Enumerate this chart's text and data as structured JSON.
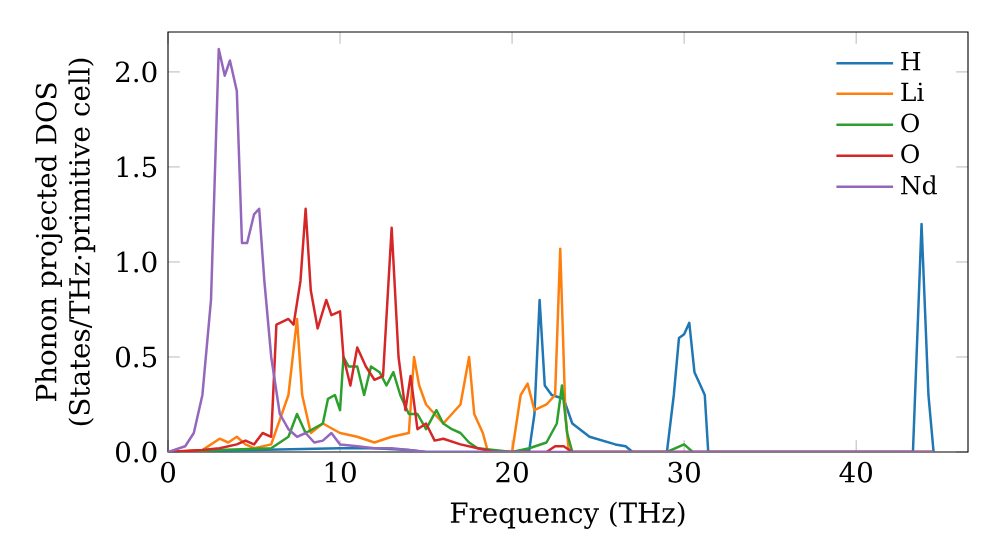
{
  "chart_data": {
    "type": "line",
    "xlabel": "Frequency (THz)",
    "ylabel": "Phonon projected DOS (States/THz·primitive cell)",
    "xlim": [
      0,
      46.5
    ],
    "ylim": [
      0,
      2.21
    ],
    "xticks": [
      0,
      10,
      20,
      30,
      40
    ],
    "yticks": [
      {
        "value": 0,
        "label": "0.0"
      },
      {
        "value": 0.5,
        "label": "0.5"
      },
      {
        "value": 1,
        "label": "1.0"
      },
      {
        "value": 1.5,
        "label": "1.5"
      },
      {
        "value": 2,
        "label": "2.0"
      }
    ],
    "legend": "top right",
    "grid": false,
    "series": [
      {
        "name": "H",
        "color": "#1f77b4",
        "x": [
          0,
          10,
          12,
          14,
          15,
          20,
          21,
          21.3,
          21.6,
          21.9,
          22.3,
          23,
          23.5,
          24.5,
          26,
          26.6,
          27,
          29,
          29.4,
          29.7,
          30,
          30.3,
          30.6,
          30.9,
          31.2,
          31.4,
          43.3,
          43.8,
          44.2,
          44.5
        ],
        "values": [
          0,
          0.02,
          0.02,
          0.01,
          0,
          0,
          0.01,
          0.2,
          0.8,
          0.35,
          0.3,
          0.28,
          0.15,
          0.08,
          0.04,
          0.03,
          0,
          0,
          0.3,
          0.6,
          0.62,
          0.68,
          0.42,
          0.36,
          0.3,
          0,
          0,
          1.2,
          0.3,
          0
        ]
      },
      {
        "name": "Li",
        "color": "#ff7f0e",
        "x": [
          0,
          2,
          3,
          3.5,
          4,
          4.5,
          5,
          6,
          7,
          7.5,
          7.8,
          8.3,
          9,
          10,
          11,
          12,
          13,
          14,
          14.3,
          14.6,
          15,
          16,
          17,
          17.5,
          17.8,
          18.3,
          18.6,
          20,
          20.5,
          20.9,
          21.3,
          22,
          22.5,
          22.8,
          23.1,
          23.3,
          44.5
        ],
        "values": [
          0,
          0.01,
          0.07,
          0.05,
          0.08,
          0.04,
          0.02,
          0.04,
          0.3,
          0.7,
          0.3,
          0.1,
          0.15,
          0.1,
          0.08,
          0.05,
          0.08,
          0.1,
          0.5,
          0.35,
          0.25,
          0.15,
          0.25,
          0.5,
          0.2,
          0.1,
          0,
          0,
          0.3,
          0.36,
          0.22,
          0.25,
          0.3,
          1.07,
          0.2,
          0,
          0
        ]
      },
      {
        "name": "O",
        "color": "#2ca02c",
        "x": [
          0,
          3,
          6,
          7,
          7.5,
          8,
          9,
          9.3,
          9.7,
          10,
          10.2,
          10.5,
          11,
          11.4,
          11.8,
          12.3,
          12.7,
          13.1,
          13.5,
          14,
          14.5,
          15,
          15.6,
          16,
          16.5,
          17,
          17.5,
          18,
          20,
          21,
          22,
          22.6,
          22.9,
          23.2,
          23.5,
          29,
          30,
          30.5,
          44.5
        ],
        "values": [
          0,
          0.01,
          0.02,
          0.08,
          0.2,
          0.1,
          0.15,
          0.28,
          0.3,
          0.22,
          0.5,
          0.45,
          0.45,
          0.3,
          0.45,
          0.42,
          0.35,
          0.42,
          0.3,
          0.2,
          0.2,
          0.12,
          0.22,
          0.15,
          0.12,
          0.1,
          0.05,
          0.02,
          0,
          0.02,
          0.05,
          0.15,
          0.35,
          0.1,
          0,
          0,
          0.04,
          0,
          0
        ]
      },
      {
        "name": "O",
        "color": "#d62728",
        "x": [
          0,
          2,
          3,
          4,
          4.5,
          5,
          5.5,
          6,
          6.3,
          7,
          7.3,
          7.7,
          8,
          8.3,
          8.7,
          9.2,
          9.5,
          10,
          10.2,
          10.6,
          11,
          11.5,
          12,
          12.5,
          13,
          13.4,
          13.8,
          14.1,
          14.5,
          15,
          15.5,
          16,
          17,
          18,
          19,
          22,
          22.5,
          23,
          23.5,
          44.5
        ],
        "values": [
          0,
          0.01,
          0.02,
          0.04,
          0.06,
          0.04,
          0.1,
          0.08,
          0.67,
          0.7,
          0.67,
          0.9,
          1.28,
          0.85,
          0.65,
          0.8,
          0.72,
          0.74,
          0.5,
          0.35,
          0.55,
          0.45,
          0.38,
          0.4,
          1.18,
          0.5,
          0.22,
          0.4,
          0.12,
          0.15,
          0.06,
          0.07,
          0.04,
          0.02,
          0,
          0,
          0.03,
          0.03,
          0,
          0
        ]
      },
      {
        "name": "Nd",
        "color": "#9467bd",
        "x": [
          0,
          1,
          1.5,
          2,
          2.5,
          2.95,
          3.3,
          3.6,
          4,
          4.3,
          4.6,
          5,
          5.3,
          5.6,
          6,
          6.5,
          7,
          7.5,
          8,
          8.5,
          9,
          9.5,
          10,
          11,
          12,
          13,
          14,
          15,
          44.5
        ],
        "values": [
          0,
          0.03,
          0.1,
          0.3,
          0.8,
          2.12,
          1.98,
          2.06,
          1.9,
          1.1,
          1.1,
          1.25,
          1.28,
          0.9,
          0.5,
          0.2,
          0.12,
          0.08,
          0.1,
          0.05,
          0.06,
          0.1,
          0.04,
          0.03,
          0.02,
          0.02,
          0.01,
          0,
          0
        ]
      }
    ]
  }
}
